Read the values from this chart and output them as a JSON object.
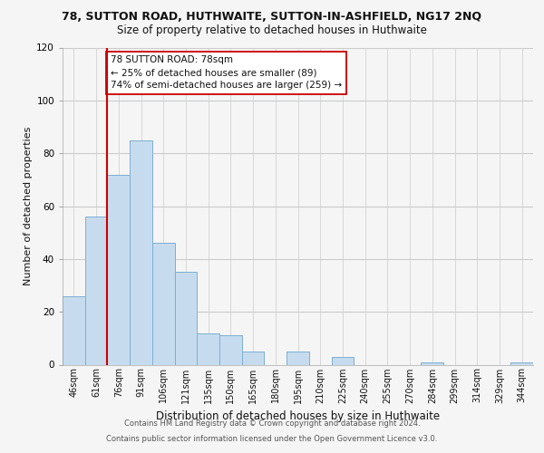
{
  "title_line1": "78, SUTTON ROAD, HUTHWAITE, SUTTON-IN-ASHFIELD, NG17 2NQ",
  "title_line2": "Size of property relative to detached houses in Huthwaite",
  "xlabel": "Distribution of detached houses by size in Huthwaite",
  "ylabel": "Number of detached properties",
  "bin_labels": [
    "46sqm",
    "61sqm",
    "76sqm",
    "91sqm",
    "106sqm",
    "121sqm",
    "135sqm",
    "150sqm",
    "165sqm",
    "180sqm",
    "195sqm",
    "210sqm",
    "225sqm",
    "240sqm",
    "255sqm",
    "270sqm",
    "284sqm",
    "299sqm",
    "314sqm",
    "329sqm",
    "344sqm"
  ],
  "bar_heights": [
    26,
    56,
    72,
    85,
    46,
    35,
    12,
    11,
    5,
    0,
    5,
    0,
    3,
    0,
    0,
    0,
    1,
    0,
    0,
    0,
    1
  ],
  "bar_color": "#c6dcee",
  "bar_edge_color": "#7bafd4",
  "highlight_line_color": "#cc0000",
  "annotation_text": "78 SUTTON ROAD: 78sqm\n← 25% of detached houses are smaller (89)\n74% of semi-detached houses are larger (259) →",
  "annotation_box_edge": "#cc0000",
  "ylim": [
    0,
    120
  ],
  "yticks": [
    0,
    20,
    40,
    60,
    80,
    100,
    120
  ],
  "footer_line1": "Contains HM Land Registry data © Crown copyright and database right 2024.",
  "footer_line2": "Contains public sector information licensed under the Open Government Licence v3.0.",
  "background_color": "#f5f5f5",
  "plot_bg_color": "#f5f5f5",
  "grid_color": "#cccccc",
  "title_fontsize": 9,
  "subtitle_fontsize": 8.5
}
